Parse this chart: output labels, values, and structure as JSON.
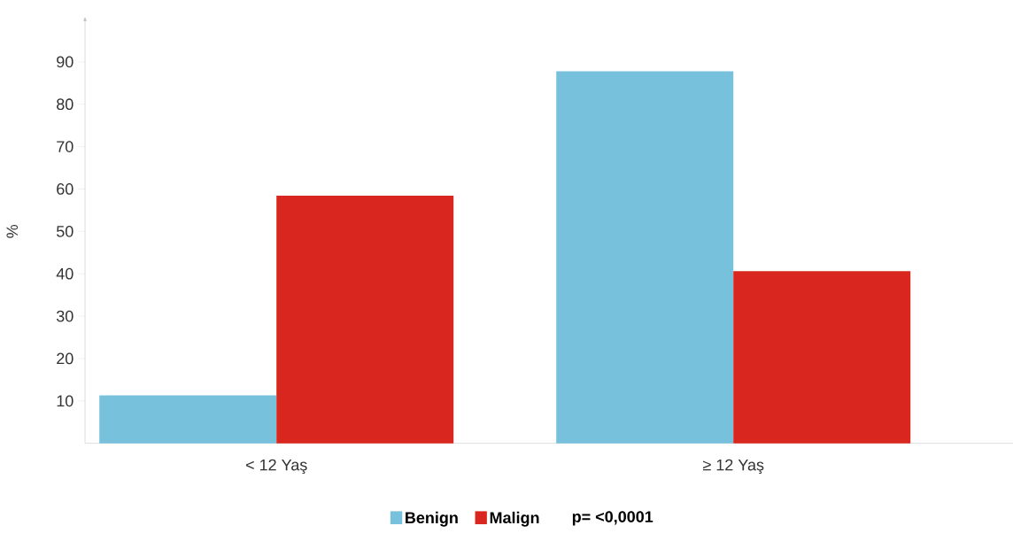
{
  "chart_data": {
    "type": "bar",
    "ylabel": "%",
    "categories": [
      "< 12 Yaş",
      "≥ 12 Yaş"
    ],
    "series": [
      {
        "name": "Benign",
        "color": "#78c1dc",
        "values": [
          11.3,
          87.8
        ]
      },
      {
        "name": "Malign",
        "color": "#d9261e",
        "values": [
          58.4,
          40.6
        ]
      }
    ],
    "ylim": [
      0,
      100
    ],
    "yticks": [
      10,
      20,
      30,
      40,
      50,
      60,
      70,
      80,
      90
    ],
    "legend": "bottom",
    "annotations": [
      "p= <0,0001"
    ]
  }
}
